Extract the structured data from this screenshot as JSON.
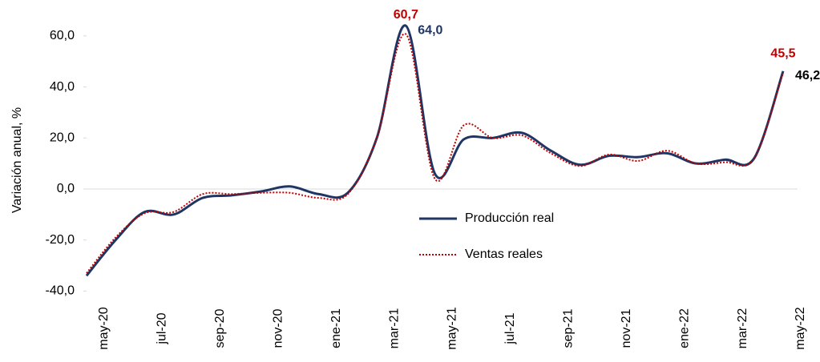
{
  "chart_data": {
    "type": "line",
    "y_label": "Variación anual, %",
    "categories": [
      "may-20",
      null,
      "jul-20",
      null,
      "sep-20",
      null,
      "nov-20",
      null,
      "ene-21",
      null,
      "mar-21",
      null,
      "may-21",
      null,
      "jul-21",
      null,
      "sep-21",
      null,
      "nov-21",
      null,
      "ene-22",
      null,
      "mar-22",
      null,
      "may-22"
    ],
    "series": [
      {
        "name": "Producción real",
        "color": "#1f3564",
        "dash": "solid",
        "values": [
          -34,
          -20,
          -9,
          -10,
          -3.5,
          -2.5,
          -1,
          1,
          -2,
          -1.5,
          20,
          64.0,
          6,
          19.5,
          20,
          22,
          15,
          9.5,
          13,
          12.5,
          14,
          10,
          11.5,
          12,
          46.2
        ],
        "value_labels": [
          null,
          null,
          null,
          null,
          null,
          null,
          null,
          null,
          null,
          null,
          null,
          "64,0",
          null,
          null,
          null,
          null,
          null,
          null,
          null,
          null,
          null,
          null,
          null,
          null,
          "46,2"
        ]
      },
      {
        "name": "Ventas reales",
        "color": "#c00000",
        "dash": "dotted",
        "values": [
          -33,
          -19,
          -9.5,
          -9,
          -2,
          -2,
          -1.5,
          -1.5,
          -3.5,
          -2,
          20,
          60.7,
          4,
          25,
          20,
          21,
          14,
          9,
          13.5,
          11,
          15,
          10,
          10.5,
          12,
          45.5
        ],
        "value_labels": [
          null,
          null,
          null,
          null,
          null,
          null,
          null,
          null,
          null,
          null,
          null,
          "60,7",
          null,
          null,
          null,
          null,
          null,
          null,
          null,
          null,
          null,
          null,
          null,
          null,
          "45,5"
        ]
      }
    ],
    "ylim": [
      -40,
      70
    ],
    "yticks": [
      {
        "value": -40,
        "label": "-40,0"
      },
      {
        "value": -20,
        "label": "-20,0"
      },
      {
        "value": 0,
        "label": "0,0"
      },
      {
        "value": 20,
        "label": "20,0"
      },
      {
        "value": 40,
        "label": "40,0"
      },
      {
        "value": 60,
        "label": "60,0"
      }
    ],
    "legend": "center"
  }
}
